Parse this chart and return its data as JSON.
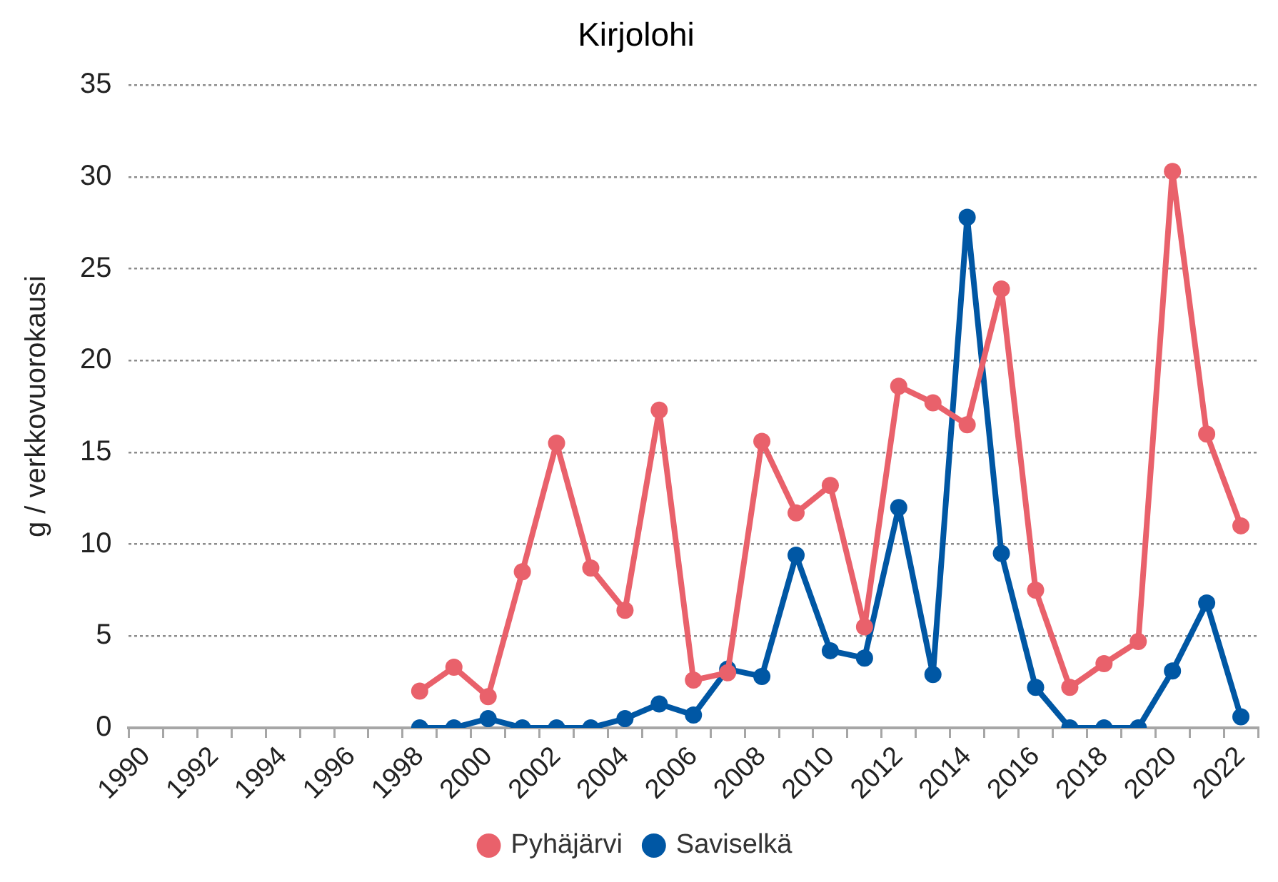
{
  "chart_data": {
    "type": "line",
    "title": "Kirjolohi",
    "ylabel": "g / verkkovuorokausi",
    "categories": [
      "1990",
      null,
      "1992",
      null,
      "1994",
      null,
      "1996",
      null,
      "1998",
      null,
      "2000",
      null,
      "2002",
      null,
      "2004",
      null,
      "2006",
      null,
      "2008",
      null,
      "2010",
      null,
      "2012",
      null,
      "2014",
      null,
      "2016",
      null,
      "2018",
      null,
      "2020",
      null,
      "2022"
    ],
    "series": [
      {
        "name": "Pyhäjärvi",
        "color": "#e9616b",
        "values": [
          null,
          null,
          null,
          null,
          null,
          null,
          null,
          null,
          2.0,
          3.3,
          1.7,
          8.5,
          15.5,
          8.7,
          6.4,
          17.3,
          2.6,
          3.0,
          15.6,
          11.7,
          13.2,
          5.5,
          18.6,
          17.7,
          16.5,
          23.9,
          7.5,
          2.2,
          3.5,
          4.7,
          30.3,
          16.0,
          11.0
        ]
      },
      {
        "name": "Saviselkä",
        "color": "#0057a4",
        "values": [
          null,
          null,
          null,
          null,
          null,
          null,
          null,
          null,
          0,
          0,
          0.5,
          0,
          0,
          0,
          0.5,
          1.3,
          0.7,
          3.2,
          2.8,
          9.4,
          4.2,
          3.8,
          12.0,
          2.9,
          27.8,
          9.5,
          2.2,
          0,
          0,
          0,
          3.1,
          6.8,
          0.6
        ]
      }
    ],
    "ylim": [
      0,
      35
    ],
    "yticks": [
      0,
      5,
      10,
      15,
      20,
      25,
      30,
      35
    ],
    "grid": "y",
    "legend": "bottom",
    "marker": "circle",
    "line_style": "solid"
  }
}
